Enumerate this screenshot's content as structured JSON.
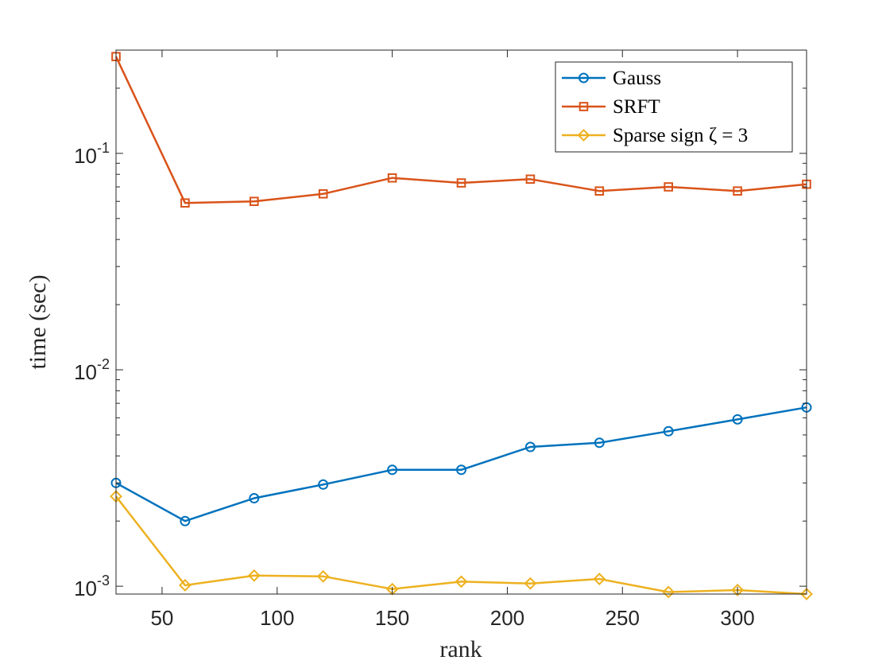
{
  "chart_data": {
    "type": "line",
    "xlabel": "rank",
    "ylabel": "time (sec)",
    "xlim": [
      30,
      330
    ],
    "ylim": [
      0.00092,
      0.3
    ],
    "yscale": "log",
    "grid": false,
    "legend_position": "top-right",
    "x_ticks": [
      50,
      100,
      150,
      200,
      250,
      300
    ],
    "x_tick_labels": [
      "50",
      "100",
      "150",
      "200",
      "250",
      "300"
    ],
    "y_ticks": [
      0.001,
      0.01,
      0.1
    ],
    "y_tick_labels": [
      {
        "base": "10",
        "exp": "-3"
      },
      {
        "base": "10",
        "exp": "-2"
      },
      {
        "base": "10",
        "exp": "-1"
      }
    ],
    "x": [
      30,
      60,
      90,
      120,
      150,
      180,
      210,
      240,
      270,
      300,
      330
    ],
    "series": [
      {
        "name": "Gauss",
        "color": "#0072BD",
        "marker": "circle",
        "values": [
          0.003,
          0.002,
          0.00255,
          0.00295,
          0.00345,
          0.00345,
          0.0044,
          0.0046,
          0.0052,
          0.0059,
          0.0067
        ]
      },
      {
        "name": "SRFT",
        "color": "#D95319",
        "marker": "square",
        "values": [
          0.28,
          0.059,
          0.06,
          0.065,
          0.077,
          0.073,
          0.076,
          0.067,
          0.07,
          0.067,
          0.072
        ]
      },
      {
        "name": "Sparse sign ζ = 3",
        "color": "#EDB120",
        "marker": "diamond",
        "values": [
          0.0026,
          0.00101,
          0.00112,
          0.00111,
          0.00097,
          0.00105,
          0.00103,
          0.00108,
          0.00094,
          0.00096,
          0.00092
        ]
      }
    ]
  }
}
